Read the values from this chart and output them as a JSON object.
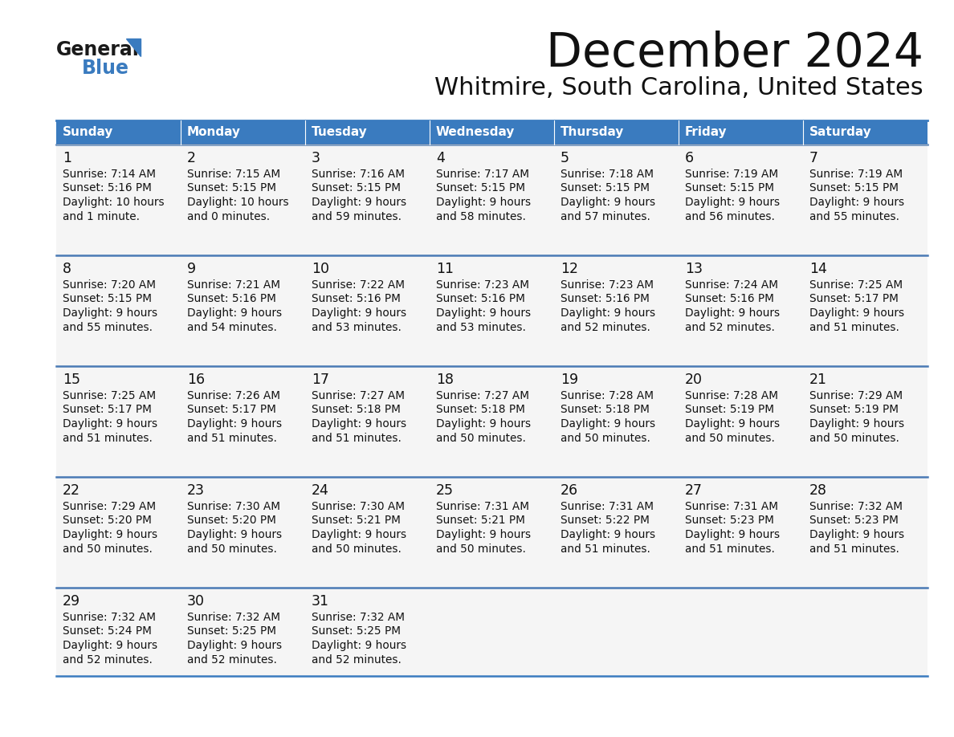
{
  "title": "December 2024",
  "subtitle": "Whitmire, South Carolina, United States",
  "header_color": "#3a7bbf",
  "header_text_color": "#ffffff",
  "cell_bg_color": "#f5f5f5",
  "border_color": "#3a7bbf",
  "separator_color": "#4a7ab5",
  "day_names": [
    "Sunday",
    "Monday",
    "Tuesday",
    "Wednesday",
    "Thursday",
    "Friday",
    "Saturday"
  ],
  "weeks": [
    [
      {
        "day": 1,
        "sunrise": "7:14 AM",
        "sunset": "5:16 PM",
        "daylight_line1": "10 hours",
        "daylight_line2": "and 1 minute."
      },
      {
        "day": 2,
        "sunrise": "7:15 AM",
        "sunset": "5:15 PM",
        "daylight_line1": "10 hours",
        "daylight_line2": "and 0 minutes."
      },
      {
        "day": 3,
        "sunrise": "7:16 AM",
        "sunset": "5:15 PM",
        "daylight_line1": "9 hours",
        "daylight_line2": "and 59 minutes."
      },
      {
        "day": 4,
        "sunrise": "7:17 AM",
        "sunset": "5:15 PM",
        "daylight_line1": "9 hours",
        "daylight_line2": "and 58 minutes."
      },
      {
        "day": 5,
        "sunrise": "7:18 AM",
        "sunset": "5:15 PM",
        "daylight_line1": "9 hours",
        "daylight_line2": "and 57 minutes."
      },
      {
        "day": 6,
        "sunrise": "7:19 AM",
        "sunset": "5:15 PM",
        "daylight_line1": "9 hours",
        "daylight_line2": "and 56 minutes."
      },
      {
        "day": 7,
        "sunrise": "7:19 AM",
        "sunset": "5:15 PM",
        "daylight_line1": "9 hours",
        "daylight_line2": "and 55 minutes."
      }
    ],
    [
      {
        "day": 8,
        "sunrise": "7:20 AM",
        "sunset": "5:15 PM",
        "daylight_line1": "9 hours",
        "daylight_line2": "and 55 minutes."
      },
      {
        "day": 9,
        "sunrise": "7:21 AM",
        "sunset": "5:16 PM",
        "daylight_line1": "9 hours",
        "daylight_line2": "and 54 minutes."
      },
      {
        "day": 10,
        "sunrise": "7:22 AM",
        "sunset": "5:16 PM",
        "daylight_line1": "9 hours",
        "daylight_line2": "and 53 minutes."
      },
      {
        "day": 11,
        "sunrise": "7:23 AM",
        "sunset": "5:16 PM",
        "daylight_line1": "9 hours",
        "daylight_line2": "and 53 minutes."
      },
      {
        "day": 12,
        "sunrise": "7:23 AM",
        "sunset": "5:16 PM",
        "daylight_line1": "9 hours",
        "daylight_line2": "and 52 minutes."
      },
      {
        "day": 13,
        "sunrise": "7:24 AM",
        "sunset": "5:16 PM",
        "daylight_line1": "9 hours",
        "daylight_line2": "and 52 minutes."
      },
      {
        "day": 14,
        "sunrise": "7:25 AM",
        "sunset": "5:17 PM",
        "daylight_line1": "9 hours",
        "daylight_line2": "and 51 minutes."
      }
    ],
    [
      {
        "day": 15,
        "sunrise": "7:25 AM",
        "sunset": "5:17 PM",
        "daylight_line1": "9 hours",
        "daylight_line2": "and 51 minutes."
      },
      {
        "day": 16,
        "sunrise": "7:26 AM",
        "sunset": "5:17 PM",
        "daylight_line1": "9 hours",
        "daylight_line2": "and 51 minutes."
      },
      {
        "day": 17,
        "sunrise": "7:27 AM",
        "sunset": "5:18 PM",
        "daylight_line1": "9 hours",
        "daylight_line2": "and 51 minutes."
      },
      {
        "day": 18,
        "sunrise": "7:27 AM",
        "sunset": "5:18 PM",
        "daylight_line1": "9 hours",
        "daylight_line2": "and 50 minutes."
      },
      {
        "day": 19,
        "sunrise": "7:28 AM",
        "sunset": "5:18 PM",
        "daylight_line1": "9 hours",
        "daylight_line2": "and 50 minutes."
      },
      {
        "day": 20,
        "sunrise": "7:28 AM",
        "sunset": "5:19 PM",
        "daylight_line1": "9 hours",
        "daylight_line2": "and 50 minutes."
      },
      {
        "day": 21,
        "sunrise": "7:29 AM",
        "sunset": "5:19 PM",
        "daylight_line1": "9 hours",
        "daylight_line2": "and 50 minutes."
      }
    ],
    [
      {
        "day": 22,
        "sunrise": "7:29 AM",
        "sunset": "5:20 PM",
        "daylight_line1": "9 hours",
        "daylight_line2": "and 50 minutes."
      },
      {
        "day": 23,
        "sunrise": "7:30 AM",
        "sunset": "5:20 PM",
        "daylight_line1": "9 hours",
        "daylight_line2": "and 50 minutes."
      },
      {
        "day": 24,
        "sunrise": "7:30 AM",
        "sunset": "5:21 PM",
        "daylight_line1": "9 hours",
        "daylight_line2": "and 50 minutes."
      },
      {
        "day": 25,
        "sunrise": "7:31 AM",
        "sunset": "5:21 PM",
        "daylight_line1": "9 hours",
        "daylight_line2": "and 50 minutes."
      },
      {
        "day": 26,
        "sunrise": "7:31 AM",
        "sunset": "5:22 PM",
        "daylight_line1": "9 hours",
        "daylight_line2": "and 51 minutes."
      },
      {
        "day": 27,
        "sunrise": "7:31 AM",
        "sunset": "5:23 PM",
        "daylight_line1": "9 hours",
        "daylight_line2": "and 51 minutes."
      },
      {
        "day": 28,
        "sunrise": "7:32 AM",
        "sunset": "5:23 PM",
        "daylight_line1": "9 hours",
        "daylight_line2": "and 51 minutes."
      }
    ],
    [
      {
        "day": 29,
        "sunrise": "7:32 AM",
        "sunset": "5:24 PM",
        "daylight_line1": "9 hours",
        "daylight_line2": "and 52 minutes."
      },
      {
        "day": 30,
        "sunrise": "7:32 AM",
        "sunset": "5:25 PM",
        "daylight_line1": "9 hours",
        "daylight_line2": "and 52 minutes."
      },
      {
        "day": 31,
        "sunrise": "7:32 AM",
        "sunset": "5:25 PM",
        "daylight_line1": "9 hours",
        "daylight_line2": "and 52 minutes."
      },
      null,
      null,
      null,
      null
    ]
  ],
  "logo_general_color": "#1a1a1a",
  "logo_blue_color": "#3a7bbf",
  "logo_triangle_color": "#3a7bbf"
}
